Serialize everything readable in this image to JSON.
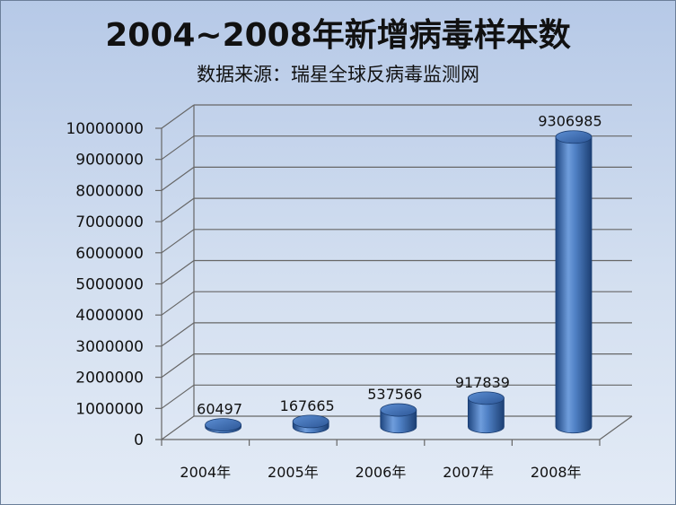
{
  "chart_data": {
    "type": "bar",
    "title": "2004~2008年新增病毒样本数",
    "subtitle": "数据来源：瑞星全球反病毒监测网",
    "categories": [
      "2004年",
      "2005年",
      "2006年",
      "2007年",
      "2008年"
    ],
    "values": [
      60497,
      167665,
      537566,
      917839,
      9306985
    ],
    "data_labels": [
      "60497",
      "167665",
      "537566",
      "917839",
      "9306985"
    ],
    "ylim": [
      0,
      10000000
    ],
    "yticks": [
      "0",
      "1000000",
      "2000000",
      "3000000",
      "4000000",
      "5000000",
      "6000000",
      "7000000",
      "8000000",
      "9000000",
      "10000000"
    ],
    "grid": true,
    "legend": "none",
    "style": "3d-cylinder",
    "colors": {
      "bar": "#3f6fb2",
      "bar_dark": "#1c3f73",
      "bar_light": "#8fb4e6",
      "grid": "#666666"
    }
  }
}
